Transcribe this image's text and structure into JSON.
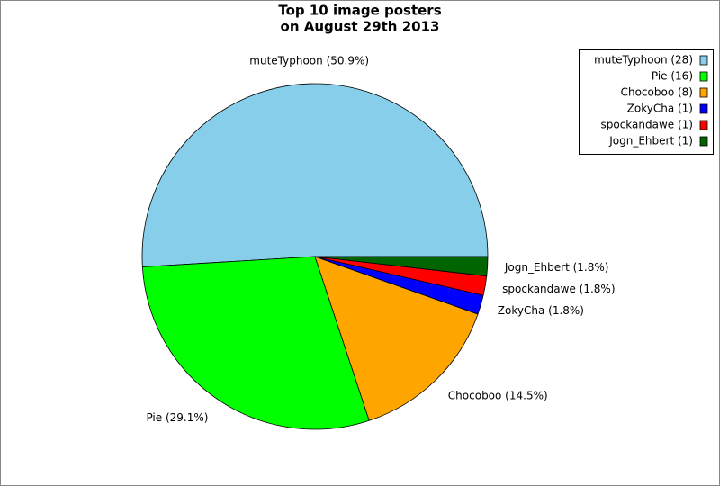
{
  "chart_data": {
    "type": "pie",
    "title": [
      "Top 10 image posters",
      "on August 29th 2013"
    ],
    "categories": [
      "muteTyphoon (28)",
      "Pie (16)",
      "Chocoboo (8)",
      "ZokyCha (1)",
      "spockandawe (1)",
      "Jogn_Ehbert (1)"
    ],
    "values": [
      50.9,
      29.1,
      14.5,
      1.8,
      1.8,
      1.8
    ],
    "value_labels": [
      "muteTyphoon (50.9%)",
      "Pie (29.1%)",
      "Chocoboo (14.5%)",
      "ZokyCha (1.8%)",
      "spockandawe (1.8%)",
      "Jogn_Ehbert (1.8%)"
    ],
    "colors": [
      "#87ceeb",
      "#00ff00",
      "#ffa500",
      "#0000ff",
      "#ff0000",
      "#006400"
    ],
    "legend": "upper right"
  }
}
